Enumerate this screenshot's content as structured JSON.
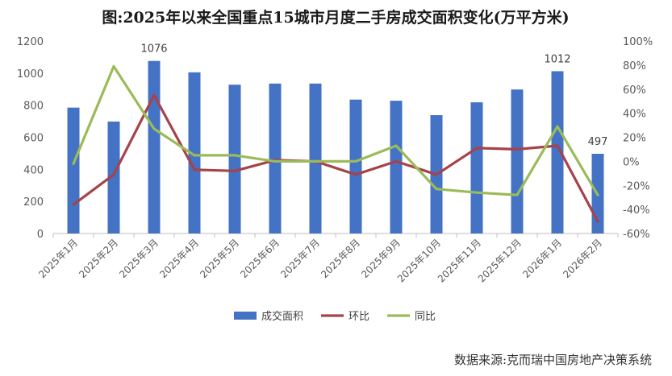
{
  "chart_data": {
    "type": "bar+line",
    "title": "图:2025年以来全国重点15城市月度二手房成交面积变化(万平方米)",
    "categories": [
      "2025年1月",
      "2025年2月",
      "2025年3月",
      "2025年4月",
      "2025年5月",
      "2025年6月",
      "2025年7月",
      "2025年8月",
      "2025年9月",
      "2025年10月",
      "2025年11月",
      "2025年12月",
      "2026年1月",
      "2026年2月"
    ],
    "y_left": {
      "min": 0,
      "max": 1200,
      "step": 200,
      "ticks": [
        "0",
        "200",
        "400",
        "600",
        "800",
        "1000",
        "1200"
      ]
    },
    "y_right": {
      "min": -60,
      "max": 100,
      "step": 20,
      "ticks": [
        "-60%",
        "-40%",
        "-20%",
        "0%",
        "20%",
        "40%",
        "60%",
        "80%",
        "100%"
      ]
    },
    "series": [
      {
        "name": "成交面积",
        "type": "bar",
        "axis": "left",
        "color": "#4472C4",
        "values": [
          785,
          698,
          1076,
          1005,
          928,
          935,
          935,
          835,
          828,
          738,
          818,
          898,
          1012,
          497
        ]
      },
      {
        "name": "环比",
        "type": "line",
        "axis": "right",
        "color": "#A5434A",
        "values": [
          -36,
          -11,
          55,
          -7,
          -8,
          1,
          0,
          -11,
          0,
          -11,
          11,
          10,
          13,
          -50
        ]
      },
      {
        "name": "同比",
        "type": "line",
        "axis": "right",
        "color": "#9BBB59",
        "values": [
          -2,
          79,
          27,
          5,
          5,
          0,
          0,
          0,
          13,
          -23,
          -26,
          -28,
          29,
          -28
        ]
      }
    ],
    "data_labels": [
      {
        "index": 2,
        "text": "1076"
      },
      {
        "index": 12,
        "text": "1012"
      },
      {
        "index": 13,
        "text": "497"
      }
    ],
    "legend": {
      "placement": "bottom",
      "items": [
        "成交面积",
        "环比",
        "同比"
      ]
    },
    "grid": false
  },
  "source_note": "数据来源:克而瑞中国房地产决策系统"
}
